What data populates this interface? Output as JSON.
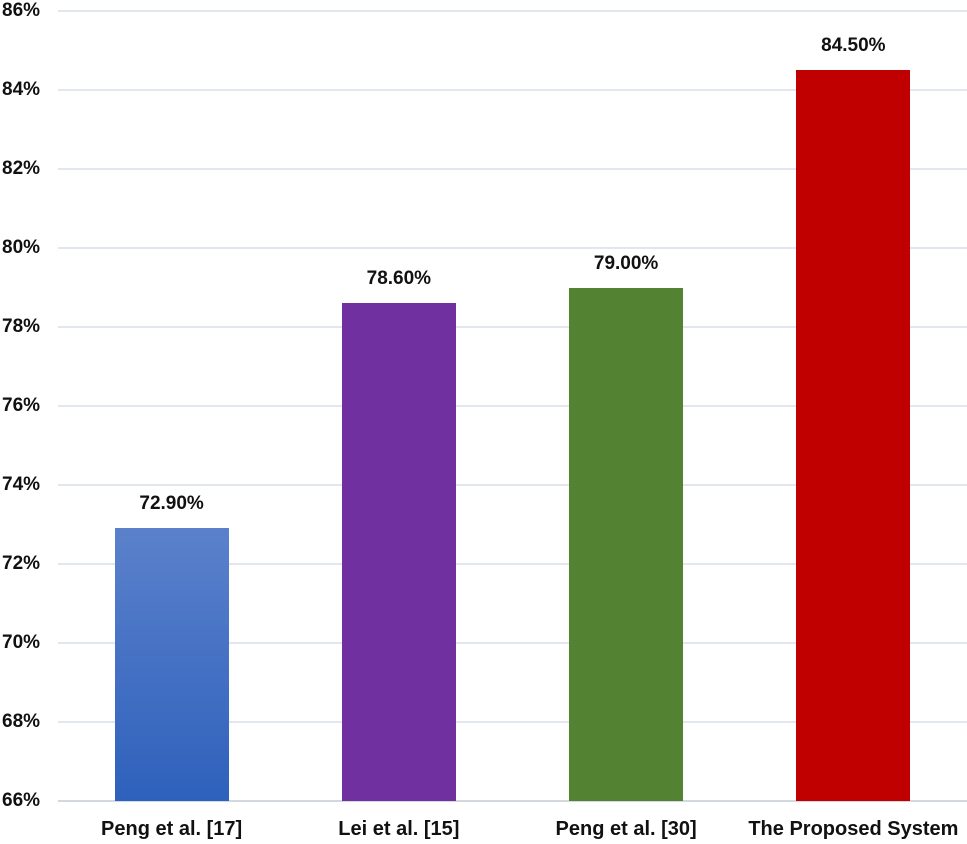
{
  "chart_data": {
    "type": "bar",
    "title": "",
    "xlabel": "",
    "ylabel": "",
    "categories": [
      "Peng et al. [17]",
      "Lei et al. [15]",
      "Peng et al. [30]",
      "The Proposed System"
    ],
    "values": [
      72.9,
      78.6,
      79.0,
      84.5
    ],
    "value_labels": [
      "72.90%",
      "78.60%",
      "79.00%",
      "84.50%"
    ],
    "bars": [
      {
        "label": "Peng et al. [17]",
        "value": 72.9,
        "display": "72.90%",
        "color_top": "#5B81CB",
        "color_bottom": "#2E61BC"
      },
      {
        "label": "Lei et al. [15]",
        "value": 78.6,
        "display": "78.60%",
        "color_top": "#7030A0",
        "color_bottom": "#7030A0"
      },
      {
        "label": "Peng et al. [30]",
        "value": 79.0,
        "display": "79.00%",
        "color_top": "#538233",
        "color_bottom": "#538233"
      },
      {
        "label": "The Proposed System",
        "value": 84.5,
        "display": "84.50%",
        "color_top": "#C00000",
        "color_bottom": "#C00000"
      }
    ],
    "ylim": [
      66,
      86
    ],
    "ytick_step": 2,
    "ytick_labels": [
      "66%",
      "68%",
      "70%",
      "72%",
      "74%",
      "76%",
      "78%",
      "80%",
      "82%",
      "84%",
      "86%"
    ],
    "grid": "horizontal",
    "legend": "none"
  },
  "colors": {
    "gridline": "#E2E6EF",
    "axis_line": "#D3D7DE",
    "text": "#111111",
    "background": "#FFFFFF"
  }
}
